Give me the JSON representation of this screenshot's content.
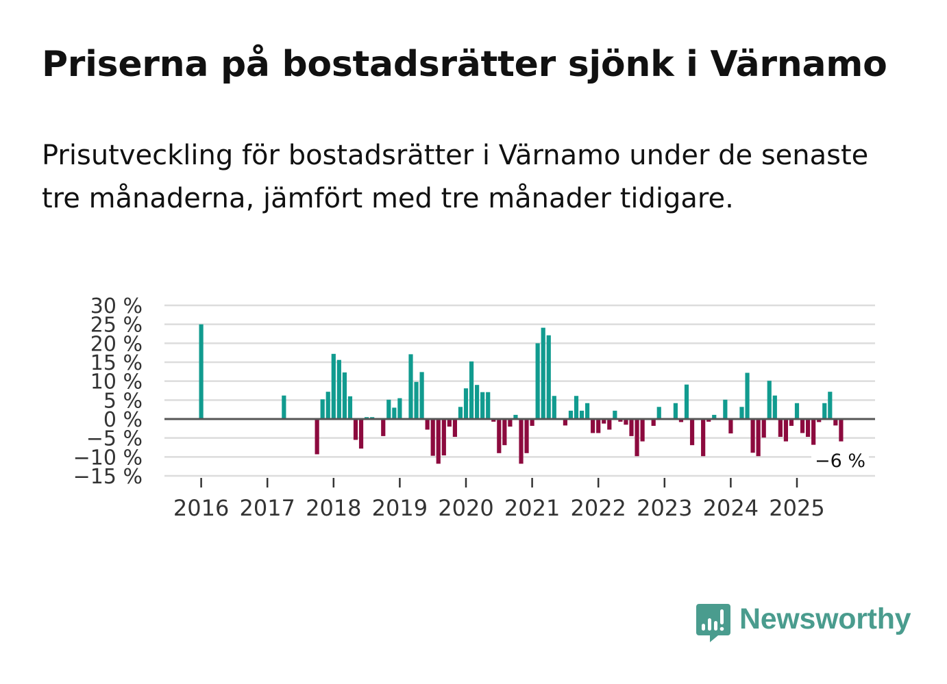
{
  "title": "Priserna på bostadsrätter sjönk i Värnamo",
  "subtitle": "Prisutveckling för bostadsrätter i Värnamo under de senaste tre månaderna, jämfört med tre månader tidigare.",
  "colors": {
    "positive": "#119b8f",
    "negative": "#8c0a3e",
    "grid": "#dcdcdc",
    "zero": "#555555",
    "brand": "#4a9c8e"
  },
  "logo": {
    "name": "Newsworthy"
  },
  "chart_data": {
    "type": "bar",
    "title": "Prisutveckling för bostadsrätter i Värnamo",
    "xlabel": "",
    "ylabel": "",
    "ylim": [
      -15,
      30
    ],
    "yticks": [
      30,
      25,
      20,
      15,
      10,
      5,
      0,
      -5,
      -10,
      -15
    ],
    "ytick_labels": [
      "30 %",
      "25 %",
      "20 %",
      "15 %",
      "10 %",
      "5 %",
      "0 %",
      "−5 %",
      "−10 %",
      "−15 %"
    ],
    "year_ticks": [
      "2016",
      "2017",
      "2018",
      "2019",
      "2020",
      "2021",
      "2022",
      "2023",
      "2024",
      "2025"
    ],
    "start": "2015-11",
    "last_value_label": "−6 %",
    "series": [
      {
        "name": "Prisutveckling, %",
        "values": [
          null,
          null,
          25,
          null,
          null,
          null,
          null,
          null,
          null,
          null,
          null,
          null,
          null,
          null,
          null,
          null,
          null,
          6.2,
          null,
          null,
          null,
          null,
          null,
          -9.3,
          5.2,
          7.2,
          17.2,
          15.6,
          12.3,
          6.0,
          -5.5,
          -7.8,
          0.5,
          0.5,
          null,
          -4.5,
          5.1,
          3.0,
          5.5,
          null,
          17.1,
          9.8,
          12.4,
          -2.8,
          -9.7,
          -11.8,
          -9.6,
          -2.0,
          -4.7,
          3.2,
          8.1,
          15.2,
          9.0,
          7.1,
          7.1,
          -0.7,
          -9.0,
          -6.9,
          -2.0,
          1.1,
          -11.8,
          -9.0,
          -1.8,
          20.0,
          24.1,
          22.1,
          6.1,
          null,
          -1.7,
          2.2,
          6.1,
          2.2,
          4.2,
          -3.7,
          -3.7,
          -1.2,
          -2.8,
          2.2,
          -0.7,
          -1.5,
          -4.5,
          -9.8,
          -5.9,
          null,
          -1.8,
          3.2,
          null,
          null,
          4.2,
          -0.8,
          9.1,
          -6.9,
          null,
          -9.8,
          -0.7,
          1.1,
          null,
          5.1,
          -3.8,
          null,
          3.2,
          12.2,
          -8.9,
          -9.8,
          -4.9,
          10.1,
          6.2,
          -4.7,
          -5.9,
          -1.8,
          4.2,
          -3.7,
          -4.7,
          -6.8,
          -0.8,
          4.2,
          7.2,
          -1.7,
          -5.9
        ]
      }
    ]
  }
}
